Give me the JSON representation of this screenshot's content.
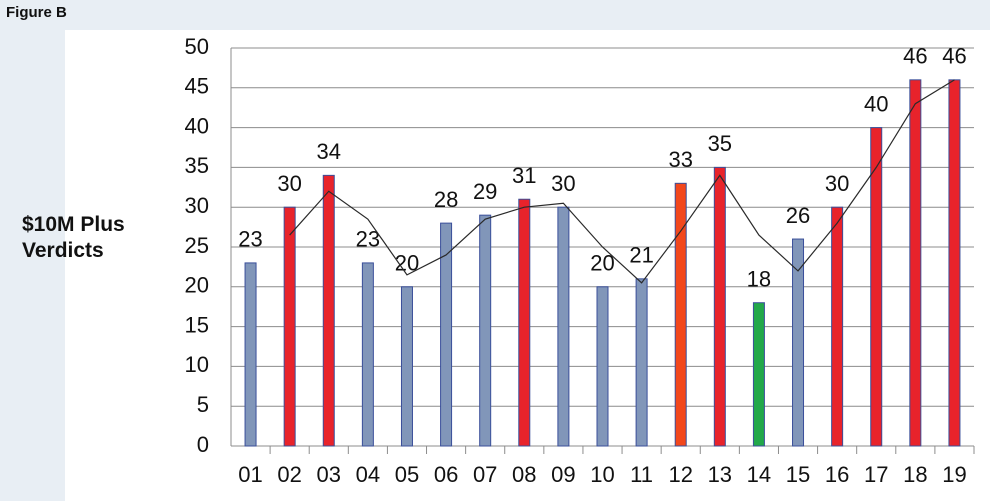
{
  "header": {
    "title": "Figure B"
  },
  "chart_data": {
    "type": "bar",
    "y_label": "$10M Plus Verdicts",
    "categories": [
      "01",
      "02",
      "03",
      "04",
      "05",
      "06",
      "07",
      "08",
      "09",
      "10",
      "11",
      "12",
      "13",
      "14",
      "15",
      "16",
      "17",
      "18",
      "19"
    ],
    "series": [
      {
        "type": "bar",
        "values": [
          23,
          30,
          34,
          23,
          20,
          28,
          29,
          31,
          30,
          20,
          21,
          33,
          35,
          18,
          26,
          30,
          40,
          46,
          46
        ],
        "colors": [
          "#8196b9",
          "#e8232b",
          "#e8232b",
          "#8196b9",
          "#8196b9",
          "#8196b9",
          "#8196b9",
          "#e8232b",
          "#8196b9",
          "#8196b9",
          "#8196b9",
          "#f2471c",
          "#e8232b",
          "#22a84a",
          "#8196b9",
          "#e8232b",
          "#e8232b",
          "#e8232b",
          "#e8232b"
        ]
      },
      {
        "type": "line",
        "color": "#2a2a2a",
        "values": [
          null,
          26.5,
          32,
          28.5,
          21.5,
          24,
          28.5,
          30,
          30.5,
          25,
          20.5,
          27,
          34,
          26.5,
          22,
          28,
          35,
          43,
          46
        ]
      }
    ],
    "ylim": [
      0,
      50
    ],
    "yticks": [
      0,
      5,
      10,
      15,
      20,
      25,
      30,
      35,
      40,
      45,
      50
    ],
    "grid": true
  }
}
